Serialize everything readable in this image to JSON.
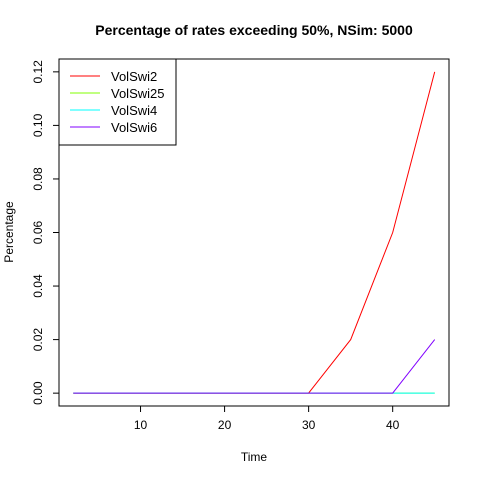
{
  "chart_data": {
    "type": "line",
    "title": "Percentage of rates exceeding 50%, NSim: 5000",
    "xlabel": "Time",
    "ylabel": "Percentage",
    "xlim": [
      0.3,
      46.7
    ],
    "ylim": [
      -0.0048,
      0.1248
    ],
    "x_ticks": [
      10,
      20,
      30,
      40
    ],
    "x_tick_labels": [
      "10",
      "20",
      "30",
      "40"
    ],
    "y_ticks": [
      0.0,
      0.02,
      0.04,
      0.06,
      0.08,
      0.1,
      0.12
    ],
    "y_tick_labels": [
      "0.00",
      "0.02",
      "0.04",
      "0.06",
      "0.08",
      "0.10",
      "0.12"
    ],
    "grid": false,
    "legend_position": "top-left",
    "x": [
      2,
      5,
      10,
      15,
      20,
      25,
      30,
      35,
      40,
      45
    ],
    "series": [
      {
        "name": "VolSwi2",
        "color": "#FF0000",
        "values": [
          0,
          0,
          0,
          0,
          0,
          0,
          0,
          0.02,
          0.06,
          0.12
        ]
      },
      {
        "name": "VolSwi25",
        "color": "#80FF00",
        "values": [
          0,
          0,
          0,
          0,
          0,
          0,
          0,
          0,
          0,
          0
        ]
      },
      {
        "name": "VolSwi4",
        "color": "#00FFFF",
        "values": [
          0,
          0,
          0,
          0,
          0,
          0,
          0,
          0,
          0,
          0
        ]
      },
      {
        "name": "VolSwi6",
        "color": "#8000FF",
        "values": [
          0,
          0,
          0,
          0,
          0,
          0,
          0,
          0,
          0,
          0.02
        ]
      }
    ]
  }
}
